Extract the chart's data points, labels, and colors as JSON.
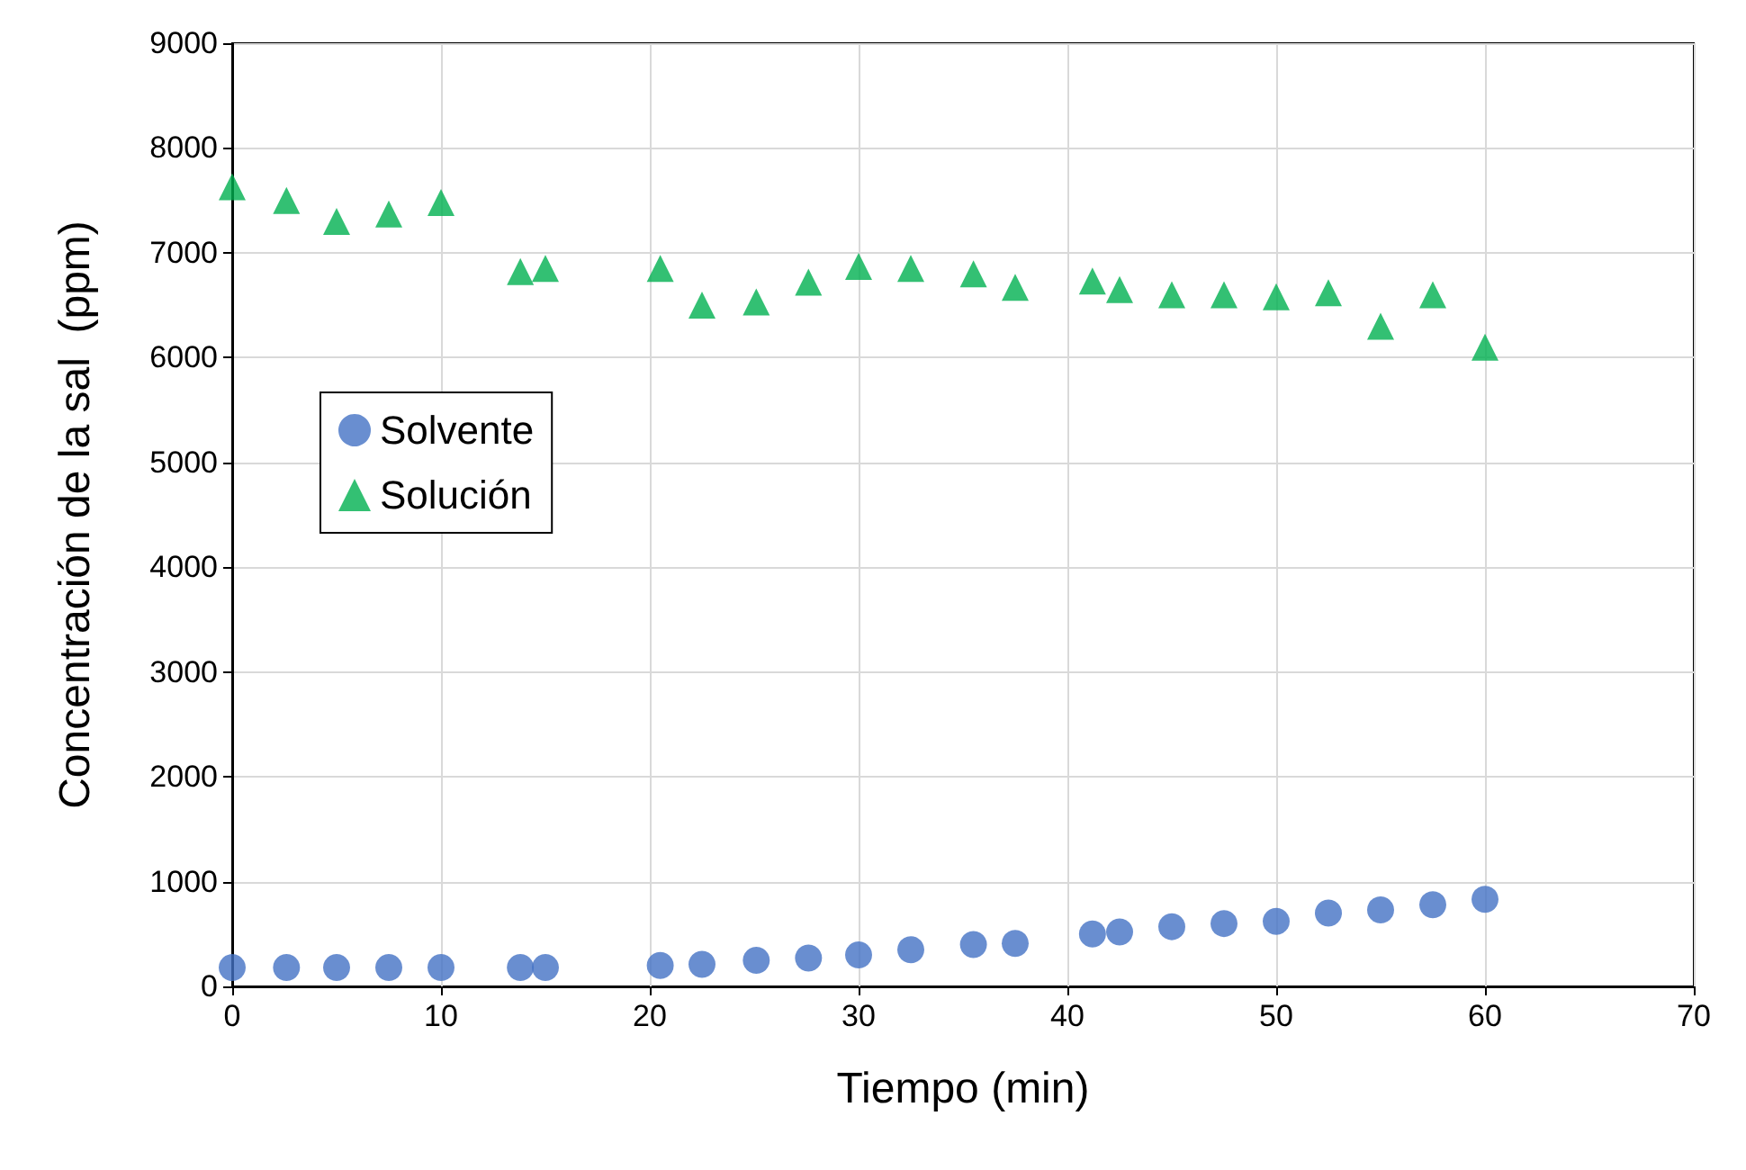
{
  "chart_data": {
    "type": "scatter",
    "xlabel": "Tiempo (min)",
    "ylabel": "Concentración de la sal  (ppm)",
    "x": [
      0,
      2.6,
      5,
      7.5,
      10,
      13.8,
      15,
      20.5,
      22.5,
      25.1,
      27.6,
      30,
      32.5,
      35.5,
      37.5,
      41.2,
      42.5,
      45,
      47.5,
      50,
      52.5,
      55,
      57.5,
      60
    ],
    "series": [
      {
        "name": "Solvente",
        "color": "#4472c4",
        "marker": "circle",
        "values": [
          180,
          180,
          180,
          180,
          180,
          180,
          180,
          200,
          210,
          250,
          270,
          300,
          350,
          400,
          410,
          500,
          520,
          570,
          600,
          620,
          700,
          730,
          780,
          830
        ]
      },
      {
        "name": "Solución",
        "color": "#00b050",
        "marker": "triangle",
        "values": [
          7630,
          7500,
          7300,
          7370,
          7480,
          6820,
          6850,
          6850,
          6500,
          6530,
          6720,
          6870,
          6850,
          6800,
          6670,
          6730,
          6650,
          6600,
          6600,
          6580,
          6620,
          6300,
          6600,
          6100
        ]
      }
    ],
    "xlim": [
      0,
      70
    ],
    "xticks": [
      0,
      10,
      20,
      30,
      40,
      50,
      60,
      70
    ],
    "ylim": [
      0,
      9000
    ],
    "yticks": [
      0,
      1000,
      2000,
      3000,
      4000,
      5000,
      6000,
      7000,
      8000,
      9000
    ],
    "grid": true,
    "legend": "left"
  }
}
